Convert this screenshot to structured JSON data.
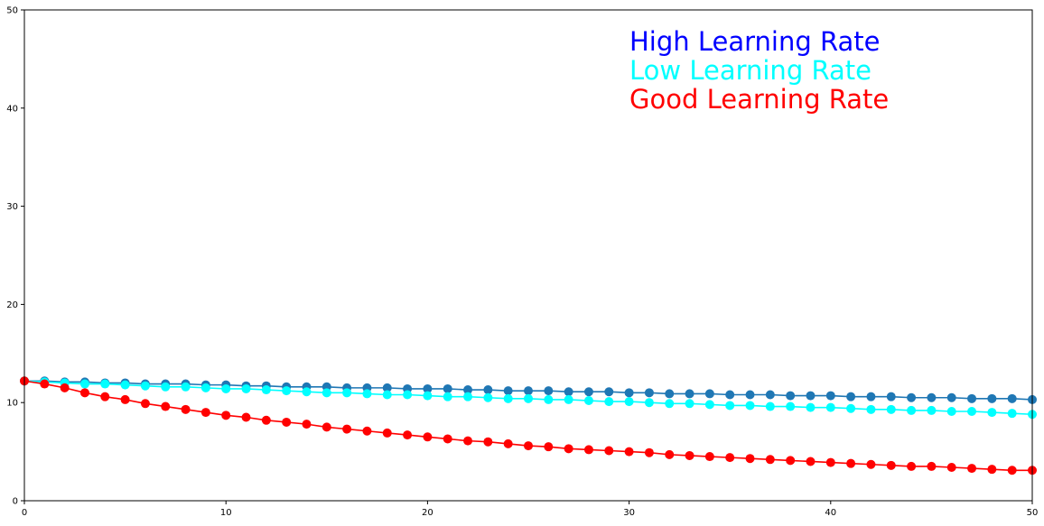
{
  "chart_data": {
    "type": "line",
    "title": "",
    "xlabel": "",
    "ylabel": "",
    "xlim": [
      0,
      50
    ],
    "ylim": [
      0,
      50
    ],
    "xticks": [
      0,
      10,
      20,
      30,
      40,
      50
    ],
    "yticks": [
      0,
      10,
      20,
      30,
      40,
      50
    ],
    "xtick_labels": [
      "0",
      "10",
      "20",
      "30",
      "40",
      "50"
    ],
    "ytick_labels": [
      "0",
      "10",
      "20",
      "30",
      "40",
      "50"
    ],
    "grid": false,
    "annotations": [
      {
        "text": "High Learning Rate",
        "color": "#0000ff"
      },
      {
        "text": "Low Learning Rate",
        "color": "#00ffff"
      },
      {
        "text": "Good Learning Rate",
        "color": "#ff0000"
      }
    ],
    "series": [
      {
        "color": "#1f77b4",
        "marker": "circle",
        "x": [
          0,
          1,
          2,
          3,
          4,
          5,
          6,
          7,
          8,
          9,
          10,
          11,
          12,
          13,
          14,
          15,
          16,
          17,
          18,
          19,
          20,
          21,
          22,
          23,
          24,
          25,
          26,
          27,
          28,
          29,
          30,
          31,
          32,
          33,
          34,
          35,
          36,
          37,
          38,
          39,
          40,
          41,
          42,
          43,
          44,
          45,
          46,
          47,
          48,
          49,
          50
        ],
        "y": [
          12.2,
          12.2,
          12.1,
          12.1,
          12.0,
          12.0,
          11.9,
          11.9,
          11.9,
          11.8,
          11.8,
          11.7,
          11.7,
          11.6,
          11.6,
          11.6,
          11.5,
          11.5,
          11.5,
          11.4,
          11.4,
          11.4,
          11.3,
          11.3,
          11.2,
          11.2,
          11.2,
          11.1,
          11.1,
          11.1,
          11.0,
          11.0,
          10.9,
          10.9,
          10.9,
          10.8,
          10.8,
          10.8,
          10.7,
          10.7,
          10.7,
          10.6,
          10.6,
          10.6,
          10.5,
          10.5,
          10.5,
          10.4,
          10.4,
          10.4,
          10.3
        ]
      },
      {
        "color": "#00ffff",
        "marker": "circle",
        "x": [
          0,
          1,
          2,
          3,
          4,
          5,
          6,
          7,
          8,
          9,
          10,
          11,
          12,
          13,
          14,
          15,
          16,
          17,
          18,
          19,
          20,
          21,
          22,
          23,
          24,
          25,
          26,
          27,
          28,
          29,
          30,
          31,
          32,
          33,
          34,
          35,
          36,
          37,
          38,
          39,
          40,
          41,
          42,
          43,
          44,
          45,
          46,
          47,
          48,
          49,
          50
        ],
        "y": [
          12.2,
          12.1,
          12.0,
          11.9,
          11.9,
          11.8,
          11.7,
          11.6,
          11.6,
          11.5,
          11.4,
          11.4,
          11.3,
          11.2,
          11.1,
          11.0,
          11.0,
          10.9,
          10.8,
          10.8,
          10.7,
          10.6,
          10.6,
          10.5,
          10.4,
          10.4,
          10.3,
          10.3,
          10.2,
          10.1,
          10.1,
          10.0,
          9.9,
          9.9,
          9.8,
          9.7,
          9.7,
          9.6,
          9.6,
          9.5,
          9.5,
          9.4,
          9.3,
          9.3,
          9.2,
          9.2,
          9.1,
          9.1,
          9.0,
          8.9,
          8.8
        ]
      },
      {
        "color": "#ff0000",
        "marker": "circle",
        "x": [
          0,
          1,
          2,
          3,
          4,
          5,
          6,
          7,
          8,
          9,
          10,
          11,
          12,
          13,
          14,
          15,
          16,
          17,
          18,
          19,
          20,
          21,
          22,
          23,
          24,
          25,
          26,
          27,
          28,
          29,
          30,
          31,
          32,
          33,
          34,
          35,
          36,
          37,
          38,
          39,
          40,
          41,
          42,
          43,
          44,
          45,
          46,
          47,
          48,
          49,
          50
        ],
        "y": [
          12.2,
          11.9,
          11.5,
          11.0,
          10.6,
          10.3,
          9.9,
          9.6,
          9.3,
          9.0,
          8.7,
          8.5,
          8.2,
          8.0,
          7.8,
          7.5,
          7.3,
          7.1,
          6.9,
          6.7,
          6.5,
          6.3,
          6.1,
          6.0,
          5.8,
          5.6,
          5.5,
          5.3,
          5.2,
          5.1,
          5.0,
          4.9,
          4.7,
          4.6,
          4.5,
          4.4,
          4.3,
          4.2,
          4.1,
          4.0,
          3.9,
          3.8,
          3.7,
          3.6,
          3.5,
          3.5,
          3.4,
          3.3,
          3.2,
          3.1,
          3.1
        ]
      }
    ]
  }
}
